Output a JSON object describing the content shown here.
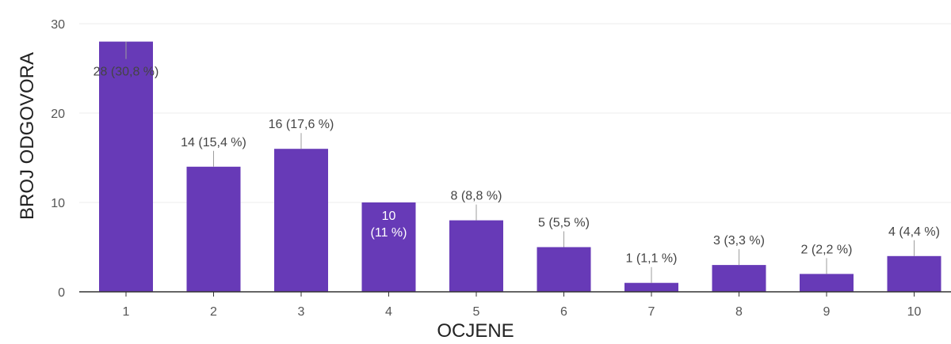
{
  "chart_data": {
    "type": "bar",
    "xlabel": "OCJENE",
    "ylabel": "BROJ ODGOVORA",
    "ylim": [
      0,
      30
    ],
    "y_ticks": [
      0,
      10,
      20,
      30
    ],
    "grid": true,
    "bar_color": "#673ab7",
    "categories": [
      "1",
      "2",
      "3",
      "4",
      "5",
      "6",
      "7",
      "8",
      "9",
      "10"
    ],
    "values": [
      28,
      14,
      16,
      10,
      8,
      5,
      1,
      3,
      2,
      4
    ],
    "data_labels": [
      "28 (30,8 %)",
      "14 (15,4 %)",
      "16 (17,6 %)",
      "10 (11 %)",
      "8 (8,8 %)",
      "5 (5,5 %)",
      "1 (1,1 %)",
      "3 (3,3 %)",
      "2 (2,2 %)",
      "4 (4,4 %)"
    ]
  }
}
